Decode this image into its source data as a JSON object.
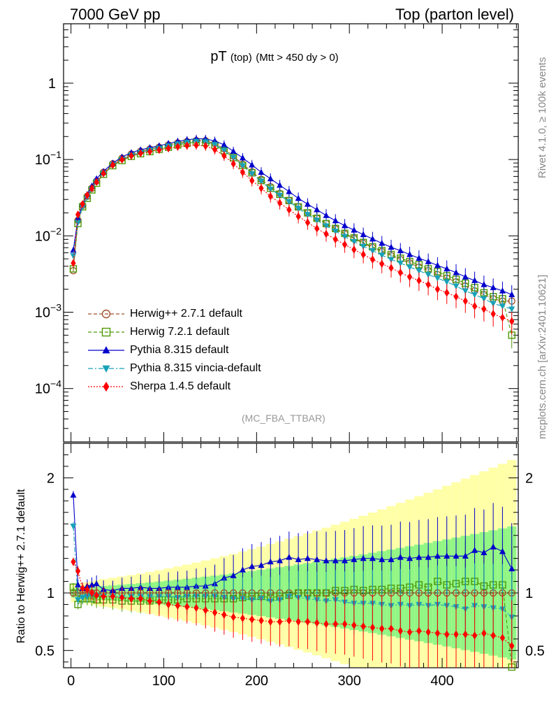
{
  "header": {
    "left": "7000 GeV pp",
    "right": "Top (parton level)"
  },
  "side": {
    "rivet": "Rivet 4.1.0, ≥ 100k events",
    "mcplots": "mcplots.cern.ch [arXiv:2401.10621]"
  },
  "ref_label": "(MC_FBA_TTBAR)",
  "chart_data": {
    "type": "scatter",
    "title": "pT",
    "title_sub": "(top)",
    "title_cuts": "(Mtt > 450 dy > 0)",
    "ratio_ylabel": "Ratio to Herwig++ 2.7.1 default",
    "x": [
      2.5,
      7.5,
      12.5,
      17.5,
      22.5,
      27.5,
      35,
      45,
      55,
      65,
      75,
      85,
      95,
      105,
      115,
      125,
      135,
      145,
      155,
      165,
      175,
      185,
      195,
      205,
      215,
      225,
      235,
      245,
      255,
      265,
      275,
      285,
      295,
      305,
      315,
      325,
      335,
      345,
      355,
      365,
      375,
      385,
      395,
      405,
      415,
      425,
      435,
      445,
      455,
      465,
      475
    ],
    "xlim": [
      -8,
      482
    ],
    "xticks": [
      0,
      100,
      200,
      300,
      400
    ],
    "main_ylim": [
      2e-05,
      6
    ],
    "main_yticks": [
      0.0001,
      0.001,
      0.01,
      0.1,
      1
    ],
    "main_ytick_labels": [
      [
        "10",
        "−4"
      ],
      [
        "10",
        "−3"
      ],
      [
        "10",
        "−2"
      ],
      [
        "10",
        "−1"
      ],
      [
        "1",
        ""
      ]
    ],
    "ratio_ylim": [
      0.35,
      2.3
    ],
    "ratio_yticks": [
      0.5,
      1,
      2
    ],
    "ratio_ytick_labels": [
      "0.5",
      "1",
      "2"
    ],
    "series": [
      {
        "name": "Herwig++ 2.7.1 default",
        "color": "#a0522d",
        "marker": "open-circle",
        "line": "dashed",
        "values": [
          0.0035,
          0.016,
          0.025,
          0.033,
          0.042,
          0.052,
          0.068,
          0.088,
          0.104,
          0.118,
          0.128,
          0.137,
          0.145,
          0.155,
          0.165,
          0.172,
          0.177,
          0.176,
          0.162,
          0.138,
          0.111,
          0.087,
          0.069,
          0.055,
          0.044,
          0.036,
          0.029,
          0.024,
          0.02,
          0.017,
          0.0145,
          0.0123,
          0.0106,
          0.0092,
          0.008,
          0.007,
          0.0062,
          0.0055,
          0.0049,
          0.0044,
          0.0039,
          0.0035,
          0.0031,
          0.0028,
          0.0025,
          0.0022,
          0.0019,
          0.0017,
          0.0015,
          0.0014,
          0.0014
        ],
        "ratio": [
          1,
          1,
          1,
          1,
          1,
          1,
          1,
          1,
          1,
          1,
          1,
          1,
          1,
          1,
          1,
          1,
          1,
          1,
          1,
          1,
          1,
          1,
          1,
          1,
          1,
          1,
          1,
          1,
          1,
          1,
          1,
          1,
          1,
          1,
          1,
          1,
          1,
          1,
          1,
          1,
          1,
          1,
          1,
          1,
          1,
          1,
          1,
          1,
          1,
          1,
          1
        ]
      },
      {
        "name": "Herwig 7.2.1 default",
        "color": "#4e9a06",
        "marker": "open-square",
        "line": "dashed",
        "values": [
          0.0037,
          0.0145,
          0.024,
          0.031,
          0.04,
          0.049,
          0.064,
          0.083,
          0.097,
          0.11,
          0.119,
          0.127,
          0.136,
          0.145,
          0.155,
          0.163,
          0.169,
          0.167,
          0.154,
          0.131,
          0.106,
          0.084,
          0.067,
          0.053,
          0.042,
          0.035,
          0.029,
          0.024,
          0.02,
          0.017,
          0.0145,
          0.0125,
          0.0108,
          0.0094,
          0.0082,
          0.0072,
          0.0064,
          0.0057,
          0.0051,
          0.0046,
          0.0042,
          0.0037,
          0.0034,
          0.003,
          0.0027,
          0.0024,
          0.0021,
          0.0018,
          0.0016,
          0.0015,
          0.0005
        ],
        "ratio": [
          1.05,
          0.9,
          0.95,
          0.95,
          0.95,
          0.94,
          0.94,
          0.94,
          0.93,
          0.93,
          0.93,
          0.93,
          0.94,
          0.94,
          0.94,
          0.95,
          0.95,
          0.95,
          0.95,
          0.95,
          0.95,
          0.96,
          0.97,
          0.97,
          0.96,
          0.97,
          0.98,
          1.0,
          1.0,
          1.0,
          1.0,
          1.02,
          1.02,
          1.03,
          1.02,
          1.03,
          1.03,
          1.04,
          1.04,
          1.05,
          1.07,
          1.05,
          1.1,
          1.07,
          1.08,
          1.1,
          1.1,
          1.06,
          1.07,
          1.07,
          0.35
        ]
      },
      {
        "name": "Pythia 8.315 default",
        "color": "#0000cc",
        "marker": "filled-triangle-up",
        "line": "solid",
        "values": [
          0.0065,
          0.017,
          0.026,
          0.035,
          0.045,
          0.056,
          0.07,
          0.09,
          0.108,
          0.123,
          0.134,
          0.143,
          0.151,
          0.162,
          0.173,
          0.181,
          0.187,
          0.186,
          0.175,
          0.156,
          0.128,
          0.105,
          0.085,
          0.068,
          0.056,
          0.046,
          0.038,
          0.031,
          0.026,
          0.022,
          0.0185,
          0.0158,
          0.0136,
          0.0119,
          0.0104,
          0.0091,
          0.008,
          0.0071,
          0.0064,
          0.0057,
          0.0051,
          0.0046,
          0.0041,
          0.0037,
          0.0033,
          0.0029,
          0.0026,
          0.0023,
          0.0021,
          0.0019,
          0.0017
        ],
        "ratio": [
          1.85,
          1.07,
          1.04,
          1.06,
          1.07,
          1.08,
          1.03,
          1.02,
          1.04,
          1.04,
          1.05,
          1.04,
          1.04,
          1.05,
          1.05,
          1.05,
          1.06,
          1.06,
          1.08,
          1.13,
          1.15,
          1.2,
          1.23,
          1.24,
          1.27,
          1.28,
          1.31,
          1.29,
          1.3,
          1.29,
          1.28,
          1.28,
          1.28,
          1.29,
          1.3,
          1.3,
          1.29,
          1.29,
          1.31,
          1.3,
          1.31,
          1.31,
          1.32,
          1.32,
          1.32,
          1.32,
          1.37,
          1.35,
          1.4,
          1.36,
          1.21
        ]
      },
      {
        "name": "Pythia 8.315 vincia-default",
        "color": "#17a2b8",
        "marker": "filled-triangle-down",
        "line": "dashdot",
        "values": [
          0.0055,
          0.015,
          0.024,
          0.032,
          0.041,
          0.051,
          0.066,
          0.085,
          0.1,
          0.114,
          0.124,
          0.133,
          0.14,
          0.15,
          0.159,
          0.167,
          0.172,
          0.17,
          0.157,
          0.132,
          0.106,
          0.083,
          0.065,
          0.052,
          0.041,
          0.034,
          0.028,
          0.023,
          0.019,
          0.016,
          0.0135,
          0.0115,
          0.0098,
          0.0084,
          0.0073,
          0.0064,
          0.0056,
          0.0049,
          0.0044,
          0.0039,
          0.0035,
          0.0031,
          0.0028,
          0.0025,
          0.0022,
          0.0019,
          0.0017,
          0.0015,
          0.0013,
          0.0012,
          0.0011
        ],
        "ratio": [
          1.58,
          0.94,
          0.96,
          0.97,
          0.98,
          0.98,
          0.97,
          0.97,
          0.96,
          0.97,
          0.97,
          0.97,
          0.97,
          0.97,
          0.96,
          0.97,
          0.97,
          0.97,
          0.97,
          0.96,
          0.95,
          0.95,
          0.94,
          0.95,
          0.93,
          0.94,
          0.97,
          0.96,
          0.95,
          0.94,
          0.93,
          0.94,
          0.92,
          0.91,
          0.91,
          0.91,
          0.9,
          0.89,
          0.9,
          0.89,
          0.9,
          0.89,
          0.9,
          0.89,
          0.88,
          0.86,
          0.89,
          0.88,
          0.87,
          0.86,
          0.79
        ]
      },
      {
        "name": "Sherpa 1.4.5 default",
        "color": "#ff0000",
        "marker": "filled-diamond",
        "line": "dotted",
        "values": [
          0.0044,
          0.019,
          0.026,
          0.034,
          0.042,
          0.051,
          0.066,
          0.085,
          0.1,
          0.112,
          0.121,
          0.127,
          0.134,
          0.14,
          0.147,
          0.152,
          0.154,
          0.15,
          0.135,
          0.112,
          0.088,
          0.068,
          0.053,
          0.042,
          0.033,
          0.027,
          0.022,
          0.018,
          0.015,
          0.0125,
          0.0106,
          0.009,
          0.0077,
          0.0066,
          0.0057,
          0.0049,
          0.0043,
          0.0038,
          0.0033,
          0.0029,
          0.0026,
          0.0023,
          0.002,
          0.0018,
          0.0016,
          0.0014,
          0.0012,
          0.0011,
          0.00095,
          0.00085,
          0.00076
        ],
        "ratio": [
          1.27,
          1.19,
          1.04,
          1.03,
          1.0,
          0.98,
          0.97,
          0.97,
          0.96,
          0.95,
          0.95,
          0.93,
          0.92,
          0.9,
          0.89,
          0.88,
          0.87,
          0.85,
          0.83,
          0.81,
          0.79,
          0.78,
          0.77,
          0.76,
          0.75,
          0.75,
          0.76,
          0.75,
          0.75,
          0.74,
          0.73,
          0.73,
          0.73,
          0.72,
          0.71,
          0.7,
          0.69,
          0.69,
          0.67,
          0.66,
          0.67,
          0.66,
          0.65,
          0.64,
          0.64,
          0.64,
          0.63,
          0.65,
          0.63,
          0.61,
          0.54
        ]
      }
    ]
  }
}
